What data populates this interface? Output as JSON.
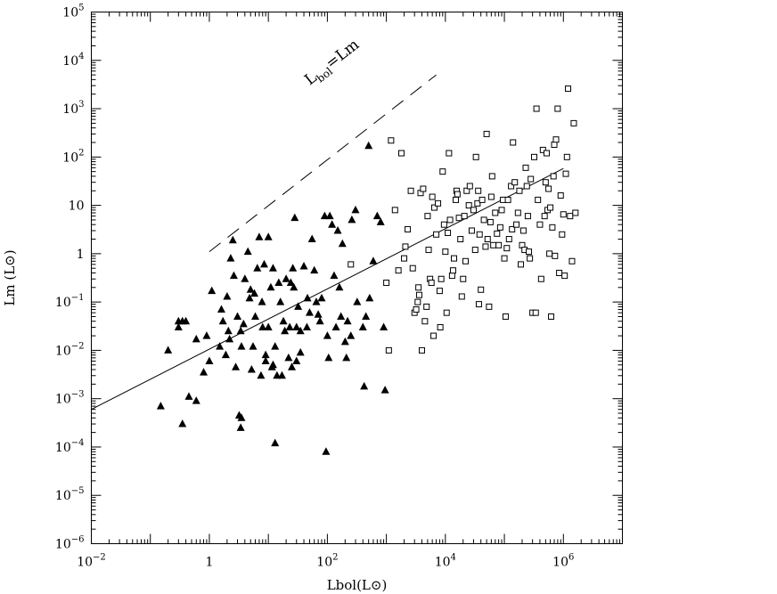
{
  "chart_data": {
    "type": "scatter",
    "x_scale": "log",
    "y_scale": "log",
    "xlim": [
      0.01,
      10000000
    ],
    "ylim": [
      1e-06,
      100000
    ],
    "grid": false,
    "xlabel": "Lbol(L⊙)",
    "ylabel": "Lm (L⊙)",
    "x_ticks": [
      {
        "value": 0.01,
        "base": "10",
        "exp": "−2"
      },
      {
        "value": 1,
        "base": "1",
        "exp": ""
      },
      {
        "value": 100,
        "base": "10",
        "exp": "2"
      },
      {
        "value": 10000,
        "base": "10",
        "exp": "4"
      },
      {
        "value": 1000000,
        "base": "10",
        "exp": "6"
      }
    ],
    "y_ticks": [
      {
        "value": 1e-06,
        "base": "10",
        "exp": "−6"
      },
      {
        "value": 1e-05,
        "base": "10",
        "exp": "−5"
      },
      {
        "value": 0.0001,
        "base": "10",
        "exp": "−4"
      },
      {
        "value": 0.001,
        "base": "10",
        "exp": "−3"
      },
      {
        "value": 0.01,
        "base": "10",
        "exp": "−2"
      },
      {
        "value": 0.1,
        "base": "10",
        "exp": "−1"
      },
      {
        "value": 1,
        "base": "1",
        "exp": ""
      },
      {
        "value": 10,
        "base": "10",
        "exp": ""
      },
      {
        "value": 100,
        "base": "10",
        "exp": "2"
      },
      {
        "value": 1000,
        "base": "10",
        "exp": "3"
      },
      {
        "value": 10000,
        "base": "10",
        "exp": "4"
      },
      {
        "value": 100000,
        "base": "10",
        "exp": "5"
      }
    ],
    "annotation": {
      "text_main": "L",
      "text_sub": "bol",
      "text_rest": "=Lm",
      "at": [
        50,
        3000
      ]
    },
    "lines": [
      {
        "style": "dashed",
        "points": [
          [
            1,
            1.1
          ],
          [
            7000,
            5000
          ]
        ]
      },
      {
        "style": "solid",
        "points": [
          [
            0.01,
            0.0006
          ],
          [
            1000000,
            58
          ]
        ]
      }
    ],
    "series": [
      {
        "marker": "filled-triangle",
        "points": [
          [
            0.15,
            0.0007
          ],
          [
            0.2,
            0.01
          ],
          [
            0.3,
            0.04
          ],
          [
            0.35,
            0.04
          ],
          [
            0.3,
            0.03
          ],
          [
            0.4,
            0.04
          ],
          [
            0.35,
            0.0003
          ],
          [
            0.45,
            0.0011
          ],
          [
            0.6,
            0.017
          ],
          [
            0.6,
            0.0009
          ],
          [
            0.8,
            0.0035
          ],
          [
            0.9,
            0.02
          ],
          [
            1,
            0.006
          ],
          [
            1.1,
            0.17
          ],
          [
            1.5,
            0.012
          ],
          [
            1.6,
            0.07
          ],
          [
            1.7,
            0.04
          ],
          [
            1.9,
            0.008
          ],
          [
            2,
            0.13
          ],
          [
            2.1,
            0.025
          ],
          [
            2.2,
            0.017
          ],
          [
            2.3,
            0.8
          ],
          [
            2.5,
            1.9
          ],
          [
            2.6,
            0.35
          ],
          [
            2.8,
            0.0045
          ],
          [
            3.0,
            0.05
          ],
          [
            3.2,
            0.00045
          ],
          [
            3.4,
            0.00025
          ],
          [
            3.5,
            0.0004
          ],
          [
            3.4,
            0.025
          ],
          [
            3.5,
            0.012
          ],
          [
            3.8,
            0.035
          ],
          [
            4,
            0.3
          ],
          [
            4.5,
            1.1
          ],
          [
            4.8,
            0.12
          ],
          [
            5,
            0.18
          ],
          [
            5.2,
            0.004
          ],
          [
            5.5,
            0.012
          ],
          [
            5.8,
            0.15
          ],
          [
            6,
            0.05
          ],
          [
            6.5,
            0.5
          ],
          [
            7,
            2.2
          ],
          [
            7.5,
            0.003
          ],
          [
            7.8,
            0.1
          ],
          [
            8,
            0.03
          ],
          [
            8.5,
            0.6
          ],
          [
            9,
            0.006
          ],
          [
            9,
            0.008
          ],
          [
            10,
            0.03
          ],
          [
            10,
            2.2
          ],
          [
            11,
            0.2
          ],
          [
            11.5,
            0.0045
          ],
          [
            12,
            0.5
          ],
          [
            12,
            0.005
          ],
          [
            13,
            0.00012
          ],
          [
            13,
            0.012
          ],
          [
            14,
            0.003
          ],
          [
            15,
            0.25
          ],
          [
            16,
            0.1
          ],
          [
            17,
            0.003
          ],
          [
            18,
            0.04
          ],
          [
            19,
            0.025
          ],
          [
            20,
            0.3
          ],
          [
            22,
            0.007
          ],
          [
            23,
            0.03
          ],
          [
            24,
            0.25
          ],
          [
            25,
            0.0045
          ],
          [
            26,
            0.5
          ],
          [
            27,
            0.2
          ],
          [
            28,
            5.5
          ],
          [
            30,
            0.03
          ],
          [
            30,
            0.006
          ],
          [
            32,
            0.08
          ],
          [
            35,
            0.009
          ],
          [
            35,
            0.025
          ],
          [
            40,
            0.55
          ],
          [
            45,
            0.03
          ],
          [
            46,
            0.12
          ],
          [
            50,
            0.06
          ],
          [
            55,
            2
          ],
          [
            60,
            0.45
          ],
          [
            65,
            0.1
          ],
          [
            70,
            0.055
          ],
          [
            75,
            0.04
          ],
          [
            80,
            0.12
          ],
          [
            90,
            6
          ],
          [
            95,
            8e-05
          ],
          [
            100,
            0.02
          ],
          [
            105,
            0.007
          ],
          [
            110,
            6
          ],
          [
            120,
            4
          ],
          [
            130,
            0.35
          ],
          [
            140,
            0.03
          ],
          [
            150,
            3
          ],
          [
            160,
            0.2
          ],
          [
            170,
            0.05
          ],
          [
            180,
            1.6
          ],
          [
            200,
            0.015
          ],
          [
            210,
            0.007
          ],
          [
            220,
            0.04
          ],
          [
            250,
            0.02
          ],
          [
            260,
            5
          ],
          [
            300,
            8
          ],
          [
            320,
            0.1
          ],
          [
            400,
            0.03
          ],
          [
            420,
            0.0018
          ],
          [
            450,
            0.05
          ],
          [
            500,
            170
          ],
          [
            520,
            0.12
          ],
          [
            600,
            0.7
          ],
          [
            700,
            6
          ],
          [
            800,
            4.5
          ],
          [
            900,
            0.03
          ],
          [
            950,
            0.0015
          ]
        ]
      },
      {
        "marker": "open-square",
        "points": [
          [
            250,
            0.6
          ],
          [
            1000,
            0.25
          ],
          [
            1100,
            0.01
          ],
          [
            1200,
            220
          ],
          [
            1400,
            8
          ],
          [
            1600,
            0.45
          ],
          [
            1800,
            120
          ],
          [
            2000,
            0.8
          ],
          [
            2100,
            1.4
          ],
          [
            2300,
            3.2
          ],
          [
            2600,
            20
          ],
          [
            2800,
            0.5
          ],
          [
            3000,
            0.06
          ],
          [
            3200,
            0.07
          ],
          [
            3400,
            0.1
          ],
          [
            3500,
            0.2
          ],
          [
            3600,
            0.14
          ],
          [
            3800,
            18
          ],
          [
            4000,
            0.01
          ],
          [
            4200,
            22
          ],
          [
            4500,
            0.04
          ],
          [
            4800,
            0.08
          ],
          [
            5000,
            6
          ],
          [
            5200,
            1.2
          ],
          [
            5500,
            0.3
          ],
          [
            5800,
            0.25
          ],
          [
            6000,
            15
          ],
          [
            6300,
            0.02
          ],
          [
            6500,
            9
          ],
          [
            7000,
            2.5
          ],
          [
            7500,
            11
          ],
          [
            8000,
            0.17
          ],
          [
            8200,
            0.03
          ],
          [
            8500,
            0.3
          ],
          [
            9000,
            50
          ],
          [
            9500,
            4
          ],
          [
            10000,
            1.1
          ],
          [
            10500,
            0.06
          ],
          [
            11000,
            2.7
          ],
          [
            11500,
            120
          ],
          [
            12000,
            5
          ],
          [
            13000,
            0.35
          ],
          [
            13500,
            0.45
          ],
          [
            14000,
            0.8
          ],
          [
            15000,
            13
          ],
          [
            15500,
            20
          ],
          [
            16000,
            17
          ],
          [
            17000,
            5.5
          ],
          [
            18000,
            2
          ],
          [
            19000,
            0.13
          ],
          [
            20000,
            0.3
          ],
          [
            21000,
            6
          ],
          [
            22000,
            0.7
          ],
          [
            23000,
            20
          ],
          [
            25000,
            10
          ],
          [
            26000,
            25
          ],
          [
            28000,
            3
          ],
          [
            30000,
            8
          ],
          [
            32000,
            1.2
          ],
          [
            33000,
            100
          ],
          [
            35000,
            11
          ],
          [
            36000,
            20
          ],
          [
            37000,
            0.09
          ],
          [
            38000,
            2.5
          ],
          [
            40000,
            0.18
          ],
          [
            42000,
            13
          ],
          [
            45000,
            5
          ],
          [
            48000,
            1.4
          ],
          [
            50000,
            300
          ],
          [
            52000,
            2
          ],
          [
            55000,
            0.08
          ],
          [
            58000,
            4.5
          ],
          [
            60000,
            15
          ],
          [
            62000,
            40
          ],
          [
            65000,
            1.5
          ],
          [
            70000,
            7
          ],
          [
            75000,
            2.6
          ],
          [
            80000,
            1.5
          ],
          [
            85000,
            3.5
          ],
          [
            90000,
            8
          ],
          [
            95000,
            13
          ],
          [
            100000,
            0.8
          ],
          [
            105000,
            0.05
          ],
          [
            110000,
            1.3
          ],
          [
            115000,
            13
          ],
          [
            120000,
            2
          ],
          [
            130000,
            25
          ],
          [
            135000,
            3.2
          ],
          [
            140000,
            200
          ],
          [
            150000,
            30
          ],
          [
            160000,
            4
          ],
          [
            170000,
            7
          ],
          [
            180000,
            20
          ],
          [
            190000,
            0.6
          ],
          [
            200000,
            1.5
          ],
          [
            210000,
            3
          ],
          [
            220000,
            1.2
          ],
          [
            230000,
            60
          ],
          [
            240000,
            25
          ],
          [
            250000,
            6
          ],
          [
            260000,
            1.1
          ],
          [
            270000,
            0.8
          ],
          [
            280000,
            35
          ],
          [
            300000,
            0.06
          ],
          [
            320000,
            100
          ],
          [
            340000,
            0.06
          ],
          [
            350000,
            1000
          ],
          [
            370000,
            13
          ],
          [
            400000,
            4
          ],
          [
            420000,
            0.3
          ],
          [
            450000,
            140
          ],
          [
            480000,
            6
          ],
          [
            500000,
            30
          ],
          [
            520000,
            120
          ],
          [
            540000,
            8
          ],
          [
            560000,
            22
          ],
          [
            580000,
            1
          ],
          [
            600000,
            9
          ],
          [
            620000,
            0.05
          ],
          [
            650000,
            3.5
          ],
          [
            680000,
            40
          ],
          [
            700000,
            180
          ],
          [
            720000,
            0.9
          ],
          [
            750000,
            230
          ],
          [
            800000,
            1000
          ],
          [
            850000,
            0.4
          ],
          [
            900000,
            16
          ],
          [
            950000,
            2.5
          ],
          [
            1000000,
            6.5
          ],
          [
            1050000,
            0.35
          ],
          [
            1100000,
            45
          ],
          [
            1150000,
            100
          ],
          [
            1200000,
            2600
          ],
          [
            1300000,
            6
          ],
          [
            1400000,
            0.7
          ],
          [
            1500000,
            500
          ],
          [
            1600000,
            7
          ]
        ]
      }
    ]
  }
}
